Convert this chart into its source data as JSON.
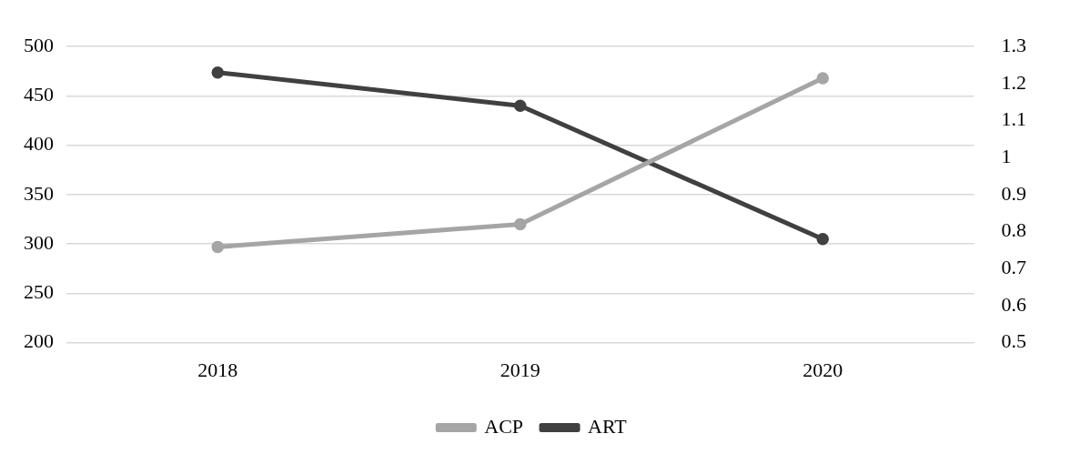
{
  "chart_data": {
    "type": "line",
    "categories": [
      "2018",
      "2019",
      "2020"
    ],
    "series": [
      {
        "name": "ACP",
        "color": "#a5a5a5",
        "values": [
          297,
          320,
          468
        ]
      },
      {
        "name": "ART",
        "color": "#404040",
        "values": [
          1.23,
          1.14,
          0.78
        ],
        "axis": "y2"
      }
    ],
    "ylim": [
      200,
      500
    ],
    "yticks": [
      200,
      250,
      300,
      350,
      400,
      450,
      500
    ],
    "y2lim": [
      0.5,
      1.3
    ],
    "y2ticks": [
      0.5,
      0.6,
      0.7,
      0.8,
      0.9,
      1,
      1.1,
      1.2,
      1.3
    ],
    "grid": "y",
    "legend": "bottom",
    "marker": "circle",
    "line_style": "solid"
  }
}
